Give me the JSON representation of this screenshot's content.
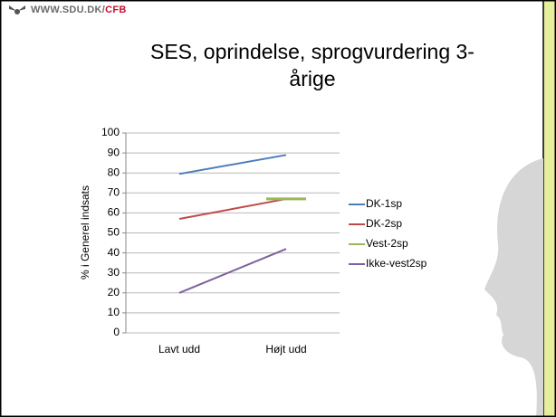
{
  "logo": {
    "site": "WWW.SDU.DK/",
    "section": "CFB"
  },
  "chart_data": {
    "type": "line",
    "title": "SES, oprindelse, sprogvurdering 3-årige",
    "ylabel": "% i Generel indsats",
    "categories": [
      "Lavt udd",
      "Højt udd"
    ],
    "series": [
      {
        "name": "DK-1sp",
        "color": "#4a7ebb",
        "values": [
          79.5,
          89
        ]
      },
      {
        "name": "DK-2sp",
        "color": "#be4b48",
        "values": [
          57,
          67
        ]
      },
      {
        "name": "Vest-2sp",
        "color": "#98b954",
        "values": [
          null,
          67
        ]
      },
      {
        "name": "Ikke-vest2sp",
        "color": "#7d60a0",
        "values": [
          20,
          42
        ]
      }
    ],
    "ylim": [
      0,
      100
    ],
    "yticks": [
      0,
      10,
      20,
      30,
      40,
      50,
      60,
      70,
      80,
      90,
      100
    ],
    "grid": true,
    "legend": "right"
  }
}
